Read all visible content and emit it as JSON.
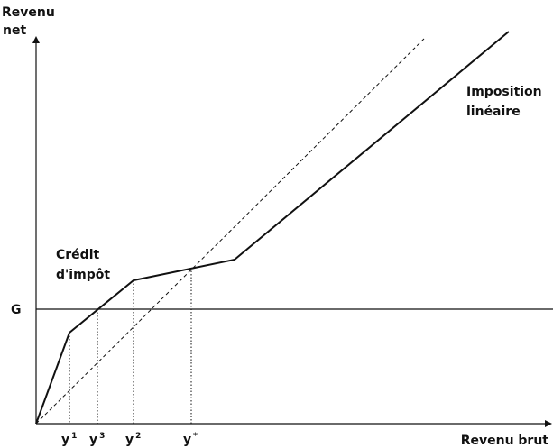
{
  "axes": {
    "y_label_line1": "Revenu",
    "y_label_line2": "net",
    "x_label": "Revenu brut"
  },
  "guaranteed_income": {
    "label": "G"
  },
  "annotations": {
    "linear_tax_line1": "Imposition",
    "linear_tax_line2": "linéaire",
    "tax_credit_line1": "Crédit",
    "tax_credit_line2": "d'impôt"
  },
  "x_markers": [
    {
      "base": "y",
      "sup": "1"
    },
    {
      "base": "y",
      "sup": "3"
    },
    {
      "base": "y",
      "sup": "2"
    },
    {
      "base": "y",
      "sup": "*"
    }
  ],
  "colors": {
    "ink": "#111111",
    "background": "#ffffff"
  }
}
